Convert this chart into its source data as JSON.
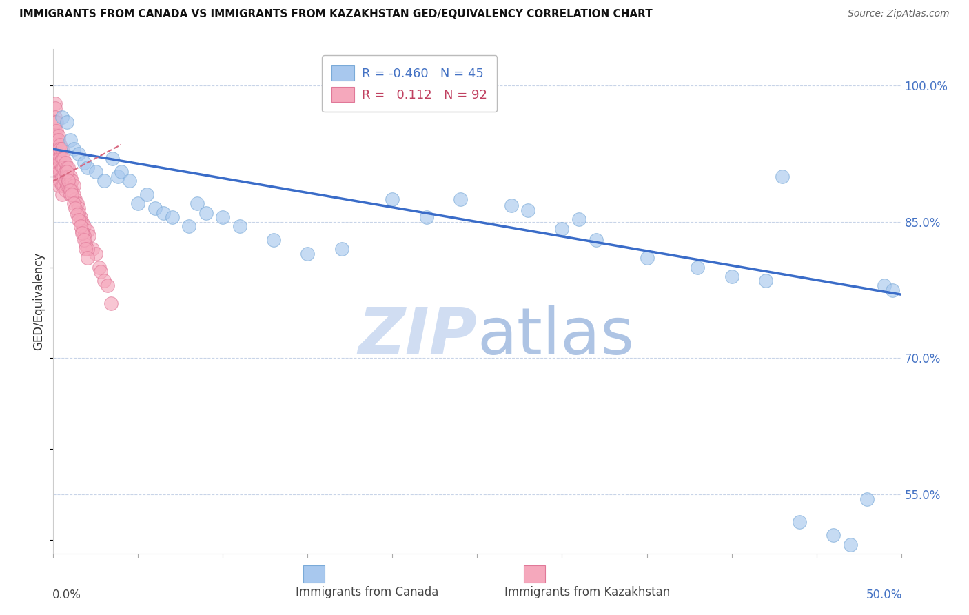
{
  "title": "IMMIGRANTS FROM CANADA VS IMMIGRANTS FROM KAZAKHSTAN GED/EQUIVALENCY CORRELATION CHART",
  "source": "Source: ZipAtlas.com",
  "ylabel": "GED/Equivalency",
  "legend_blue_r": "-0.460",
  "legend_blue_n": "45",
  "legend_pink_r": "0.112",
  "legend_pink_n": "92",
  "legend_label_blue": "Immigrants from Canada",
  "legend_label_pink": "Immigrants from Kazakhstan",
  "blue_color": "#A8C8EE",
  "blue_edge_color": "#7AAAD8",
  "pink_color": "#F5A8BC",
  "pink_edge_color": "#E07898",
  "blue_line_color": "#3A6CC8",
  "pink_line_color": "#D86880",
  "watermark_color": "#C8D8F0",
  "grid_color": "#C8D4E8",
  "bg_color": "#FFFFFF",
  "xlim": [
    0.0,
    0.5
  ],
  "ylim": [
    0.485,
    1.04
  ],
  "ytick_vals": [
    1.0,
    0.85,
    0.7,
    0.55
  ],
  "ytick_labels": [
    "100.0%",
    "85.0%",
    "70.0%",
    "55.0%"
  ],
  "blue_line_x": [
    0.0,
    0.5
  ],
  "blue_line_y": [
    0.93,
    0.77
  ],
  "pink_line_x": [
    0.0,
    0.04
  ],
  "pink_line_y": [
    0.895,
    0.935
  ],
  "blue_scatter_x": [
    0.005,
    0.008,
    0.01,
    0.012,
    0.015,
    0.018,
    0.02,
    0.025,
    0.03,
    0.035,
    0.038,
    0.04,
    0.045,
    0.05,
    0.055,
    0.06,
    0.065,
    0.07,
    0.08,
    0.085,
    0.09,
    0.1,
    0.11,
    0.13,
    0.15,
    0.17,
    0.2,
    0.22,
    0.24,
    0.28,
    0.3,
    0.32,
    0.35,
    0.38,
    0.4,
    0.42,
    0.43,
    0.44,
    0.46,
    0.47,
    0.48,
    0.49,
    0.495,
    0.31,
    0.27
  ],
  "blue_scatter_y": [
    0.965,
    0.96,
    0.94,
    0.93,
    0.925,
    0.915,
    0.91,
    0.905,
    0.895,
    0.92,
    0.9,
    0.905,
    0.895,
    0.87,
    0.88,
    0.865,
    0.86,
    0.855,
    0.845,
    0.87,
    0.86,
    0.855,
    0.845,
    0.83,
    0.815,
    0.82,
    0.875,
    0.855,
    0.875,
    0.863,
    0.842,
    0.83,
    0.81,
    0.8,
    0.79,
    0.785,
    0.9,
    0.52,
    0.505,
    0.495,
    0.545,
    0.78,
    0.775,
    0.853,
    0.868
  ],
  "pink_scatter_x": [
    0.001,
    0.001,
    0.001,
    0.001,
    0.001,
    0.001,
    0.001,
    0.001,
    0.002,
    0.002,
    0.002,
    0.002,
    0.002,
    0.002,
    0.002,
    0.003,
    0.003,
    0.003,
    0.003,
    0.003,
    0.003,
    0.003,
    0.003,
    0.003,
    0.003,
    0.004,
    0.004,
    0.004,
    0.004,
    0.004,
    0.004,
    0.005,
    0.005,
    0.005,
    0.005,
    0.005,
    0.005,
    0.006,
    0.006,
    0.006,
    0.006,
    0.007,
    0.007,
    0.007,
    0.007,
    0.008,
    0.008,
    0.008,
    0.009,
    0.009,
    0.009,
    0.01,
    0.01,
    0.01,
    0.011,
    0.011,
    0.012,
    0.012,
    0.013,
    0.014,
    0.015,
    0.016,
    0.017,
    0.018,
    0.02,
    0.021,
    0.023,
    0.025,
    0.027,
    0.028,
    0.03,
    0.032,
    0.034,
    0.015,
    0.016,
    0.017,
    0.018,
    0.019,
    0.02,
    0.008,
    0.009,
    0.01,
    0.011,
    0.012,
    0.013,
    0.014,
    0.015,
    0.016,
    0.017,
    0.018,
    0.019,
    0.02
  ],
  "pink_scatter_y": [
    0.98,
    0.975,
    0.965,
    0.96,
    0.95,
    0.945,
    0.94,
    0.93,
    0.96,
    0.95,
    0.94,
    0.935,
    0.925,
    0.92,
    0.91,
    0.945,
    0.94,
    0.93,
    0.925,
    0.92,
    0.915,
    0.91,
    0.905,
    0.895,
    0.89,
    0.935,
    0.93,
    0.92,
    0.915,
    0.905,
    0.895,
    0.93,
    0.92,
    0.91,
    0.9,
    0.89,
    0.88,
    0.92,
    0.91,
    0.9,
    0.89,
    0.915,
    0.905,
    0.895,
    0.885,
    0.91,
    0.9,
    0.89,
    0.91,
    0.9,
    0.89,
    0.9,
    0.89,
    0.88,
    0.895,
    0.885,
    0.89,
    0.88,
    0.875,
    0.87,
    0.865,
    0.855,
    0.85,
    0.845,
    0.84,
    0.835,
    0.82,
    0.815,
    0.8,
    0.795,
    0.785,
    0.78,
    0.76,
    0.86,
    0.85,
    0.84,
    0.835,
    0.825,
    0.82,
    0.905,
    0.895,
    0.885,
    0.88,
    0.87,
    0.865,
    0.858,
    0.852,
    0.845,
    0.838,
    0.83,
    0.82,
    0.81
  ]
}
